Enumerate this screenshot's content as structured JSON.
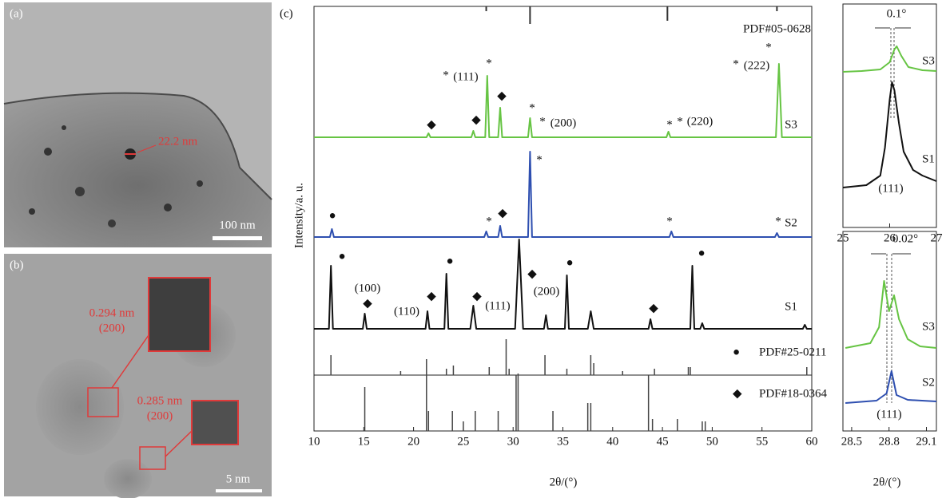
{
  "panel_a": {
    "label": "(a)",
    "annotation": "22.2 nm",
    "scale_bar": "100 nm"
  },
  "panel_b": {
    "label": "(b)",
    "annotations": [
      "0.294 nm",
      "(200)",
      "0.285 nm",
      "(200)"
    ],
    "scale_bar": "5 nm"
  },
  "chart_data": [
    {
      "type": "line",
      "label": "(c)",
      "x_label": "2θ/(°)",
      "y_label": "Intensity/a. u.",
      "xlim": [
        10,
        60
      ],
      "xticks": [
        10,
        15,
        20,
        25,
        30,
        35,
        40,
        45,
        50,
        55,
        60
      ],
      "series": [
        {
          "name": "S3",
          "color": "#66c443",
          "x": [
            10,
            21.3,
            21.5,
            21.7,
            25.8,
            26,
            26.2,
            27.2,
            27.4,
            27.6,
            28.5,
            28.7,
            28.9,
            31.5,
            31.7,
            31.9,
            45.4,
            45.6,
            45.8,
            56.4,
            56.7,
            57,
            60
          ],
          "values": [
            0,
            0,
            5,
            0,
            0,
            8,
            0,
            0,
            77,
            0,
            0,
            37,
            0,
            0,
            24,
            0,
            0,
            7,
            0,
            0,
            92,
            0,
            0
          ]
        },
        {
          "name": "S2",
          "color": "#2e4fb0",
          "x": [
            10,
            11.6,
            11.8,
            12,
            27.1,
            27.3,
            27.5,
            28.5,
            28.7,
            28.9,
            31.5,
            31.7,
            31.9,
            45.7,
            45.9,
            46.1,
            56.3,
            56.5,
            56.7,
            60
          ],
          "values": [
            0,
            0,
            10,
            0,
            0,
            7,
            0,
            0,
            14,
            0,
            0,
            107,
            0,
            0,
            7,
            0,
            0,
            5,
            0,
            0
          ]
        },
        {
          "name": "S1",
          "color": "#111111",
          "x": [
            10,
            11.5,
            11.7,
            11.9,
            14.9,
            15.1,
            15.3,
            21.2,
            21.4,
            21.6,
            23.1,
            23.3,
            23.5,
            25.7,
            26,
            26.3,
            30.2,
            30.6,
            31,
            33.1,
            33.3,
            33.5,
            35.2,
            35.4,
            35.6,
            37.5,
            37.8,
            38.1,
            43.6,
            43.8,
            44,
            47.8,
            48,
            48.2,
            48.8,
            49,
            49.2,
            59.1,
            59.3,
            59.5,
            60
          ],
          "values": [
            0,
            0,
            79,
            0,
            0,
            19,
            0,
            0,
            22,
            0,
            0,
            69,
            0,
            0,
            29,
            0,
            0,
            112,
            0,
            0,
            17,
            0,
            0,
            67,
            0,
            0,
            22,
            0,
            0,
            12,
            0,
            0,
            79,
            0,
            0,
            7,
            0,
            0,
            5,
            0,
            0
          ]
        }
      ],
      "references": [
        {
          "name": "PDF#05-0628",
          "positions": [
            27.3,
            31.7,
            45.5,
            56.5
          ],
          "values": [
            6,
            22,
            18,
            6
          ]
        },
        {
          "name": "PDF#25-0211",
          "marker": "●",
          "positions": [
            11.7,
            18.7,
            23.3,
            24,
            27.6,
            29.3,
            29.6,
            33.2,
            35.4,
            37.8,
            38.1,
            41,
            44.2,
            47.6,
            47.8,
            59.5
          ],
          "values": [
            25,
            5,
            8,
            12,
            10,
            45,
            8,
            25,
            8,
            25,
            15,
            5,
            8,
            10,
            10,
            10
          ]
        },
        {
          "name": "PDF#18-0364",
          "marker": "◆",
          "positions": [
            15.1,
            21.3,
            21.5,
            23.9,
            25,
            26.2,
            28.5,
            30.3,
            30.5,
            34,
            37.5,
            37.8,
            43.6,
            44,
            46.5,
            49,
            49.3
          ],
          "values": [
            55,
            90,
            25,
            25,
            12,
            25,
            25,
            70,
            72,
            25,
            35,
            35,
            70,
            15,
            15,
            12,
            12
          ]
        }
      ],
      "annotations": [
        "*",
        "(111)",
        "*",
        "◆",
        "◆",
        "◆",
        "*",
        "*",
        "(200)",
        "*",
        "*",
        "(220)",
        "*",
        "(222)",
        "*",
        "●",
        "*",
        "◆",
        "*",
        "*",
        "*",
        "●",
        "(100)",
        "◆",
        "(110)",
        "◆",
        "●",
        "◆",
        "(111)",
        "◆",
        "(200)",
        "●",
        "●",
        "◆"
      ]
    },
    {
      "type": "line",
      "x_label": "2θ/(°)",
      "xlim": [
        25,
        27
      ],
      "xticks": [
        25,
        26,
        27
      ],
      "series": [
        {
          "name": "S3",
          "color": "#66c443",
          "x": [
            25,
            25.4,
            25.8,
            26,
            26.1,
            26.15,
            26.25,
            26.4,
            26.7,
            27
          ],
          "values": [
            2,
            3,
            5,
            14,
            30,
            34,
            22,
            8,
            4,
            3
          ]
        },
        {
          "name": "S1",
          "color": "#111111",
          "x": [
            25,
            25.5,
            25.8,
            25.9,
            26,
            26.05,
            26.1,
            26.2,
            26.3,
            26.5,
            26.7,
            27
          ],
          "values": [
            0,
            3,
            15,
            50,
            110,
            132,
            122,
            80,
            45,
            22,
            15,
            8
          ]
        }
      ],
      "annotations": [
        "0.1°",
        "(111)"
      ]
    },
    {
      "type": "line",
      "x_label": "2θ/(°)",
      "xlim": [
        28.43,
        29.18
      ],
      "xticks": [
        28.5,
        28.8,
        29.1
      ],
      "series": [
        {
          "name": "S3",
          "color": "#66c443",
          "x": [
            28.45,
            28.65,
            28.72,
            28.76,
            28.8,
            28.84,
            28.88,
            28.95,
            29.05,
            29.18
          ],
          "values": [
            4,
            10,
            30,
            88,
            50,
            70,
            40,
            15,
            6,
            4
          ]
        },
        {
          "name": "S2",
          "color": "#2e4fb0",
          "x": [
            28.45,
            28.7,
            28.78,
            28.82,
            28.86,
            28.95,
            29.18
          ],
          "values": [
            0,
            3,
            12,
            40,
            10,
            4,
            2
          ]
        }
      ],
      "annotations": [
        "0.02°",
        "(111)"
      ]
    }
  ]
}
